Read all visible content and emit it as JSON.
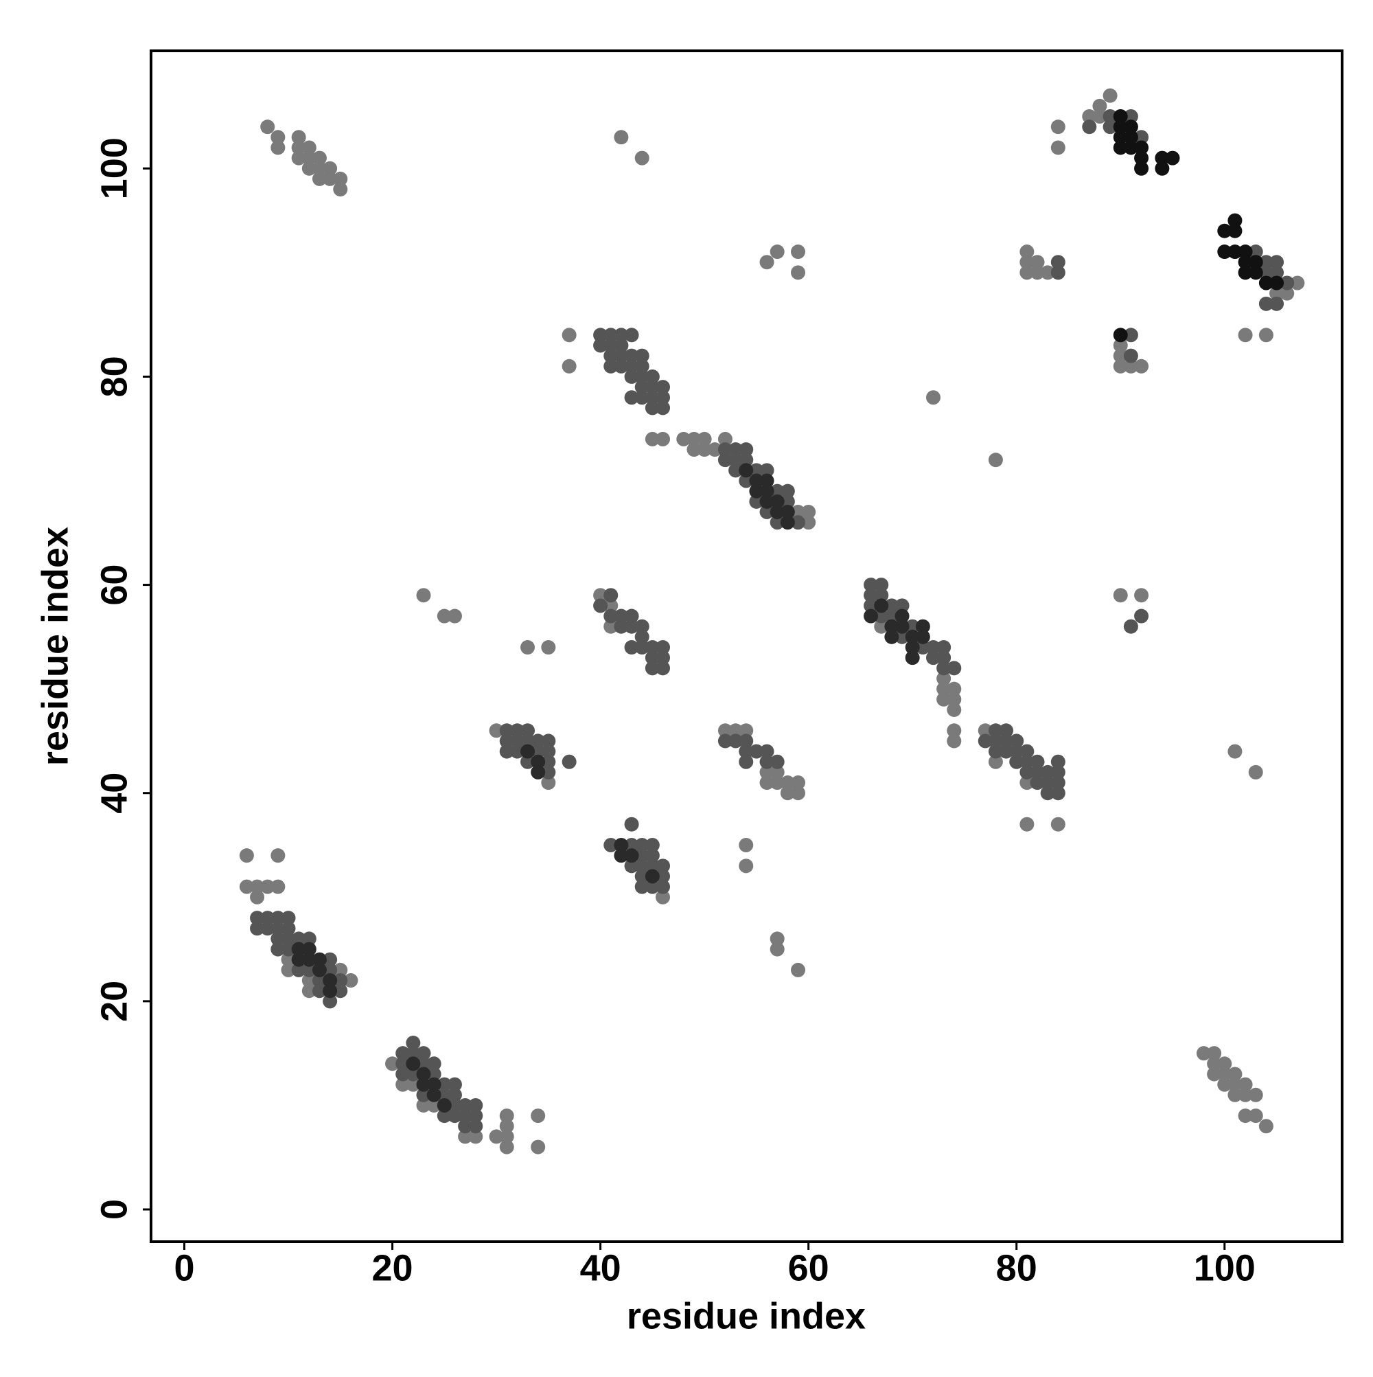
{
  "chart_data": {
    "type": "scatter",
    "xlabel": "residue index",
    "ylabel": "residue index",
    "xlim": [
      -3.2,
      111.3
    ],
    "ylim": [
      -3.1,
      111.3
    ],
    "xticks": [
      0,
      20,
      40,
      60,
      80,
      100
    ],
    "yticks": [
      0,
      20,
      40,
      60,
      80,
      100
    ],
    "series": [
      {
        "color": "#7a7a7a",
        "x": [
          8,
          9,
          9,
          11,
          11,
          11,
          12,
          12,
          12,
          13,
          13,
          13,
          14,
          14,
          15,
          15,
          42,
          44,
          84,
          84,
          88,
          89,
          87,
          88,
          102,
          104,
          57,
          59,
          59,
          56,
          81,
          81,
          81,
          82,
          82,
          83,
          90,
          90,
          90,
          91,
          92,
          37,
          37,
          45,
          46,
          48,
          49,
          49,
          50,
          50,
          51,
          52,
          72,
          78,
          59,
          60,
          60,
          23,
          25,
          26,
          33,
          35,
          40,
          41,
          41,
          73,
          73,
          73,
          74,
          74,
          74,
          74,
          74,
          67,
          90,
          92,
          30,
          35,
          52,
          53,
          54,
          56,
          56,
          57,
          57,
          58,
          58,
          59,
          59,
          77,
          78,
          81,
          81,
          84,
          101,
          103,
          54,
          54,
          57,
          57,
          59,
          46,
          6,
          9,
          6,
          7,
          7,
          8,
          9,
          10,
          10,
          12,
          12,
          15,
          16,
          20,
          21,
          22,
          23,
          24,
          27,
          28,
          30,
          31,
          31,
          31,
          31,
          34,
          34,
          98,
          99,
          99,
          99,
          100,
          100,
          100,
          101,
          101,
          101,
          102,
          102,
          102,
          103,
          103,
          104,
          106,
          107,
          105
        ],
        "y": [
          104,
          103,
          102,
          103,
          102,
          101,
          102,
          101,
          100,
          101,
          100,
          99,
          100,
          99,
          99,
          98,
          103,
          101,
          104,
          102,
          106,
          107,
          105,
          105,
          84,
          84,
          92,
          92,
          90,
          91,
          92,
          91,
          90,
          91,
          90,
          90,
          83,
          82,
          81,
          81,
          81,
          84,
          81,
          74,
          74,
          74,
          74,
          73,
          74,
          73,
          73,
          74,
          78,
          72,
          67,
          67,
          66,
          59,
          57,
          57,
          54,
          54,
          59,
          58,
          56,
          51,
          50,
          49,
          50,
          49,
          48,
          46,
          45,
          56,
          59,
          59,
          46,
          41,
          46,
          46,
          46,
          42,
          41,
          42,
          41,
          41,
          40,
          41,
          40,
          46,
          43,
          41,
          37,
          37,
          44,
          42,
          35,
          33,
          26,
          25,
          23,
          30,
          34,
          34,
          31,
          31,
          30,
          31,
          31,
          24,
          23,
          22,
          21,
          23,
          22,
          14,
          12,
          12,
          10,
          10,
          7,
          7,
          7,
          9,
          8,
          7,
          6,
          9,
          6,
          15,
          15,
          14,
          13,
          14,
          13,
          12,
          13,
          12,
          11,
          12,
          11,
          9,
          11,
          9,
          8,
          88,
          89,
          88
        ]
      },
      {
        "color": "#555555",
        "x": [
          87,
          89,
          89,
          91,
          92,
          103,
          104,
          104,
          105,
          105,
          106,
          104,
          105,
          84,
          84,
          91,
          91,
          40,
          40,
          41,
          41,
          41,
          41,
          42,
          42,
          42,
          42,
          43,
          43,
          43,
          43,
          44,
          44,
          44,
          44,
          44,
          45,
          45,
          45,
          45,
          46,
          46,
          46,
          43,
          52,
          52,
          53,
          53,
          53,
          54,
          54,
          54,
          55,
          55,
          56,
          56,
          57,
          57,
          58,
          58,
          59,
          40,
          41,
          41,
          42,
          42,
          43,
          43,
          43,
          44,
          44,
          44,
          45,
          45,
          45,
          46,
          46,
          46,
          66,
          66,
          66,
          67,
          67,
          67,
          68,
          68,
          69,
          69,
          70,
          71,
          72,
          72,
          73,
          73,
          73,
          74,
          92,
          91,
          31,
          31,
          31,
          32,
          32,
          32,
          33,
          33,
          33,
          34,
          34,
          35,
          35,
          35,
          35,
          37,
          52,
          53,
          54,
          54,
          54,
          55,
          56,
          56,
          57,
          77,
          78,
          78,
          78,
          79,
          79,
          79,
          80,
          80,
          80,
          81,
          81,
          81,
          82,
          82,
          82,
          83,
          83,
          83,
          84,
          84,
          84,
          84,
          43,
          41,
          43,
          43,
          44,
          44,
          44,
          44,
          44,
          45,
          45,
          45,
          45,
          46,
          46,
          46,
          7,
          7,
          8,
          8,
          9,
          9,
          9,
          9,
          10,
          10,
          10,
          10,
          11,
          11,
          12,
          12,
          13,
          13,
          14,
          14,
          14,
          15,
          15,
          21,
          21,
          21,
          22,
          22,
          22,
          23,
          23,
          23,
          24,
          24,
          25,
          25,
          25,
          26,
          26,
          26,
          26,
          27,
          27,
          27,
          28,
          28,
          28
        ],
        "y": [
          104,
          105,
          104,
          105,
          103,
          92,
          91,
          90,
          91,
          90,
          89,
          87,
          87,
          91,
          90,
          84,
          82,
          84,
          83,
          84,
          83,
          82,
          81,
          84,
          83,
          82,
          81,
          84,
          82,
          81,
          80,
          82,
          81,
          80,
          79,
          78,
          80,
          79,
          78,
          77,
          79,
          78,
          77,
          78,
          73,
          72,
          73,
          72,
          71,
          73,
          72,
          70,
          71,
          68,
          71,
          67,
          69,
          66,
          69,
          68,
          66,
          58,
          59,
          57,
          57,
          56,
          57,
          56,
          54,
          56,
          55,
          54,
          54,
          53,
          52,
          54,
          53,
          52,
          60,
          59,
          58,
          60,
          59,
          57,
          58,
          57,
          58,
          55,
          56,
          54,
          54,
          53,
          54,
          53,
          52,
          52,
          57,
          56,
          46,
          45,
          44,
          46,
          45,
          44,
          46,
          45,
          43,
          45,
          44,
          45,
          44,
          43,
          42,
          43,
          45,
          45,
          45,
          44,
          43,
          44,
          44,
          43,
          43,
          45,
          46,
          45,
          44,
          46,
          45,
          44,
          45,
          44,
          43,
          44,
          43,
          42,
          43,
          42,
          41,
          42,
          41,
          40,
          43,
          42,
          41,
          40,
          37,
          35,
          35,
          33,
          35,
          34,
          33,
          32,
          31,
          35,
          34,
          33,
          31,
          33,
          32,
          31,
          28,
          27,
          28,
          27,
          28,
          27,
          26,
          25,
          28,
          27,
          26,
          25,
          26,
          23,
          26,
          23,
          22,
          21,
          24,
          23,
          20,
          22,
          21,
          15,
          14,
          13,
          16,
          15,
          13,
          15,
          14,
          11,
          14,
          13,
          12,
          11,
          9,
          12,
          11,
          10,
          9,
          10,
          9,
          8,
          10,
          9,
          8
        ]
      },
      {
        "color": "#2a2a2a",
        "x": [
          54,
          55,
          55,
          56,
          56,
          56,
          57,
          57,
          58,
          58,
          68,
          68,
          69,
          69,
          70,
          70,
          71,
          71,
          70,
          12,
          12,
          13,
          13,
          11,
          11,
          14,
          14,
          23,
          23,
          24,
          24,
          22,
          25,
          42,
          42,
          43,
          45,
          34,
          34,
          33,
          66,
          67
        ],
        "y": [
          71,
          70,
          69,
          70,
          69,
          68,
          68,
          67,
          67,
          66,
          56,
          55,
          57,
          56,
          55,
          54,
          56,
          55,
          53,
          25,
          24,
          24,
          23,
          25,
          24,
          22,
          21,
          13,
          12,
          12,
          11,
          14,
          10,
          35,
          34,
          34,
          32,
          43,
          42,
          44,
          57,
          58
        ]
      },
      {
        "color": "#111111",
        "x": [
          90,
          90,
          90,
          90,
          91,
          91,
          91,
          92,
          92,
          92,
          94,
          94,
          95,
          100,
          101,
          101,
          100,
          101,
          102,
          102,
          102,
          103,
          103,
          104,
          105,
          90
        ],
        "y": [
          105,
          104,
          103,
          102,
          104,
          103,
          102,
          102,
          101,
          100,
          101,
          100,
          101,
          94,
          95,
          94,
          92,
          92,
          92,
          91,
          90,
          91,
          90,
          89,
          89,
          84
        ]
      }
    ]
  }
}
